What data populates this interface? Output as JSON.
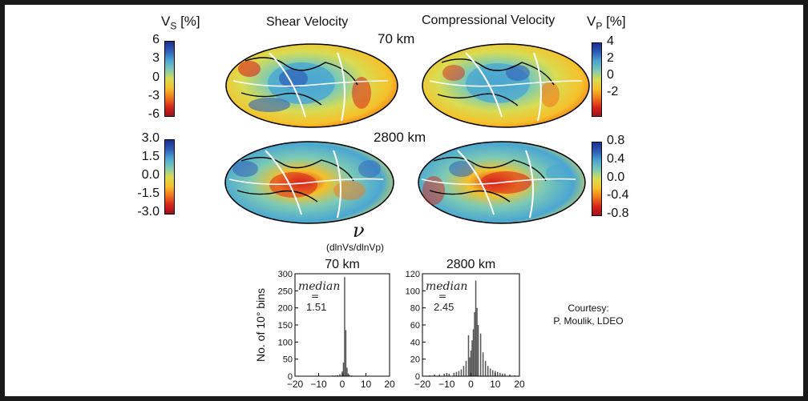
{
  "maps": {
    "vs_label": "V",
    "vs_sub": "S",
    "vs_unit": " [%]",
    "vp_label": "V",
    "vp_sub": "P",
    "vp_unit": " [%]",
    "col_left_title": "Shear Velocity",
    "col_right_title": "Compressional Velocity",
    "depth_1": "70 km",
    "depth_2": "2800 km",
    "vs_70_ticks": [
      "6",
      "3",
      "0",
      "-3",
      "-6"
    ],
    "vp_70_ticks": [
      "4",
      "2",
      "0",
      "-2"
    ],
    "vs_2800_ticks": [
      "3.0",
      "1.5",
      "0.0",
      "-1.5",
      "-3.0"
    ],
    "vp_2800_ticks": [
      "0.8",
      "0.4",
      "0.0",
      "-0.4",
      "-0.8"
    ],
    "colormap": [
      "#1b2f8e",
      "#2f5fb8",
      "#4aa6d2",
      "#7fcbb3",
      "#d9dc52",
      "#f6c02a",
      "#ef7a1c",
      "#d8231c",
      "#a01018"
    ]
  },
  "ratio": {
    "symbol": "ν",
    "subtitle": "(dlnVs/dlnVp)"
  },
  "courtesy": {
    "line1": "Courtesy:",
    "line2": "P. Moulik, LDEO"
  },
  "chart_data": [
    {
      "type": "bar",
      "title": "70 km",
      "ylabel": "No. of 10° bins",
      "xlim": [
        -20,
        20
      ],
      "ylim": [
        0,
        300
      ],
      "xticks": [
        -20,
        -10,
        0,
        10,
        20
      ],
      "yticks": [
        0,
        50,
        100,
        150,
        200,
        250,
        300
      ],
      "annotation": "median",
      "annotation_eq": "=",
      "median": "1.51",
      "bar_color": "#555555",
      "bins": [
        {
          "x": -13,
          "y": 1
        },
        {
          "x": -7,
          "y": 1
        },
        {
          "x": -4,
          "y": 2
        },
        {
          "x": -3,
          "y": 2
        },
        {
          "x": -2,
          "y": 3
        },
        {
          "x": -1,
          "y": 6
        },
        {
          "x": 0,
          "y": 14
        },
        {
          "x": 0.5,
          "y": 40
        },
        {
          "x": 1,
          "y": 290
        },
        {
          "x": 1.5,
          "y": 135
        },
        {
          "x": 2,
          "y": 25
        },
        {
          "x": 2.5,
          "y": 8
        },
        {
          "x": 3,
          "y": 4
        },
        {
          "x": 4,
          "y": 2
        },
        {
          "x": 5,
          "y": 1
        },
        {
          "x": 7,
          "y": 1
        },
        {
          "x": 10,
          "y": 1
        },
        {
          "x": 15,
          "y": 1
        }
      ]
    },
    {
      "type": "bar",
      "title": "2800 km",
      "ylabel": "",
      "xlim": [
        -20,
        20
      ],
      "ylim": [
        0,
        120
      ],
      "xticks": [
        -20,
        -10,
        0,
        10,
        20
      ],
      "yticks": [
        0,
        20,
        40,
        60,
        80,
        100,
        120
      ],
      "annotation": "median",
      "annotation_eq": "=",
      "median": "2.45",
      "bar_color": "#555555",
      "bins": [
        {
          "x": -17,
          "y": 1
        },
        {
          "x": -15,
          "y": 2
        },
        {
          "x": -13,
          "y": 2
        },
        {
          "x": -11,
          "y": 3
        },
        {
          "x": -9,
          "y": 3
        },
        {
          "x": -7,
          "y": 4
        },
        {
          "x": -6,
          "y": 5
        },
        {
          "x": -5,
          "y": 6
        },
        {
          "x": -4,
          "y": 8
        },
        {
          "x": -3,
          "y": 12
        },
        {
          "x": -2,
          "y": 18
        },
        {
          "x": -1,
          "y": 48
        },
        {
          "x": -0.5,
          "y": 22
        },
        {
          "x": 0,
          "y": 30
        },
        {
          "x": 0.5,
          "y": 42
        },
        {
          "x": 1,
          "y": 55
        },
        {
          "x": 1.5,
          "y": 75
        },
        {
          "x": 2,
          "y": 112
        },
        {
          "x": 2.5,
          "y": 80
        },
        {
          "x": 3,
          "y": 60
        },
        {
          "x": 4,
          "y": 50
        },
        {
          "x": 5,
          "y": 28
        },
        {
          "x": 6,
          "y": 18
        },
        {
          "x": 7,
          "y": 12
        },
        {
          "x": 8,
          "y": 9
        },
        {
          "x": 9,
          "y": 7
        },
        {
          "x": 10,
          "y": 6
        },
        {
          "x": 11,
          "y": 5
        },
        {
          "x": 12,
          "y": 4
        },
        {
          "x": 13,
          "y": 3
        },
        {
          "x": 14,
          "y": 3
        },
        {
          "x": 16,
          "y": 2
        },
        {
          "x": 18,
          "y": 1
        }
      ]
    }
  ]
}
